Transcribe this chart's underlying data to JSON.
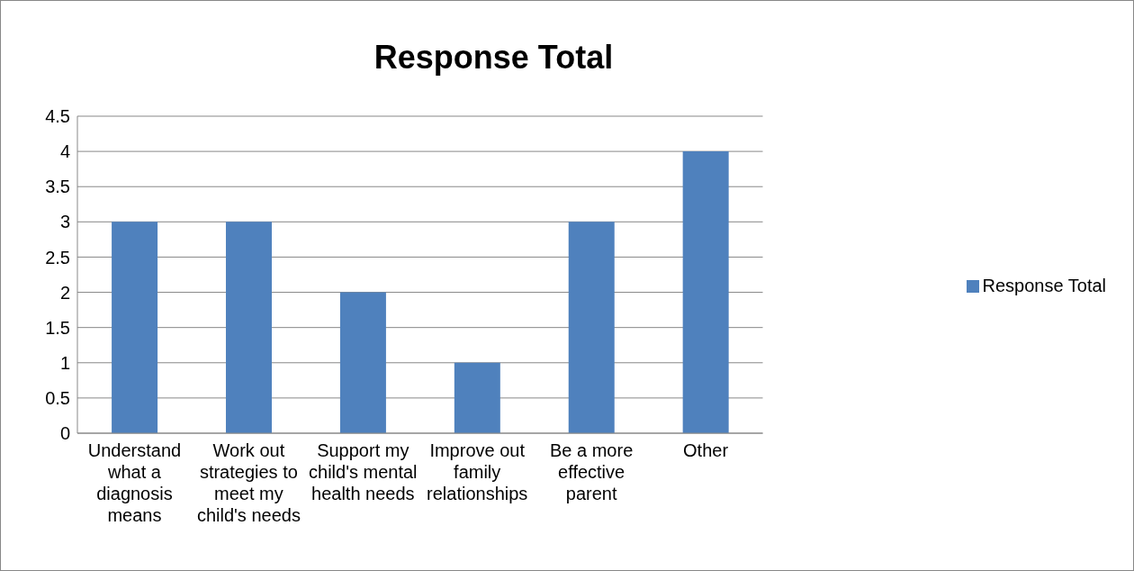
{
  "chart_data": {
    "type": "bar",
    "title": "Response Total",
    "categories": [
      "Understand what a diagnosis means",
      "Work out strategies to meet my child's needs",
      "Support my child's mental health needs",
      "Improve out family relationships",
      "Be a more effective parent",
      "Other"
    ],
    "series": [
      {
        "name": "Response Total",
        "color": "#4f81bd",
        "values": [
          3,
          3,
          2,
          1,
          3,
          4
        ]
      }
    ],
    "ylim": [
      0,
      4.5
    ],
    "yticks": [
      0,
      0.5,
      1,
      1.5,
      2,
      2.5,
      3,
      3.5,
      4,
      4.5
    ],
    "grid": "y",
    "legend": "right"
  }
}
